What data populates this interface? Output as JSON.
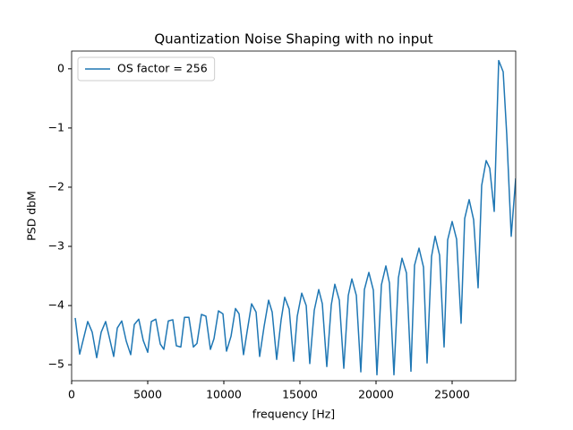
{
  "chart_data": {
    "type": "line",
    "title": "Quantization Noise Shaping with no input",
    "x_label": "frequency [Hz]",
    "y_label": "PSD dbM",
    "legend": "upper left",
    "grid": false,
    "xlim": [
      0,
      29176
    ],
    "ylim": [
      -5.27,
      0.3
    ],
    "xticks": [
      0,
      5000,
      10000,
      15000,
      20000,
      25000
    ],
    "yticks": [
      {
        "value": -5,
        "label": "−5"
      },
      {
        "value": -4,
        "label": "−4"
      },
      {
        "value": -3,
        "label": "−3"
      },
      {
        "value": -2,
        "label": "−2"
      },
      {
        "value": -1,
        "label": "−1"
      },
      0
    ],
    "x": [
      235,
      529,
      1059,
      1353,
      1647,
      1941,
      2235,
      2471,
      2765,
      3000,
      3294,
      3588,
      3882,
      4118,
      4412,
      4706,
      5000,
      5235,
      5529,
      5824,
      6059,
      6353,
      6647,
      6882,
      7176,
      7412,
      7706,
      8000,
      8235,
      8529,
      8824,
      9118,
      9353,
      9647,
      9941,
      10176,
      10471,
      10765,
      11000,
      11294,
      11529,
      11824,
      12118,
      12353,
      12647,
      12941,
      13176,
      13471,
      13765,
      14000,
      14294,
      14588,
      14824,
      15118,
      15412,
      15647,
      15941,
      16235,
      16471,
      16765,
      17059,
      17294,
      17588,
      17882,
      18176,
      18412,
      18706,
      19000,
      19235,
      19529,
      19824,
      20059,
      20353,
      20647,
      20882,
      21176,
      21471,
      21706,
      22000,
      22294,
      22529,
      22824,
      23118,
      23353,
      23647,
      23882,
      24176,
      24471,
      24706,
      25000,
      25294,
      25588,
      25824,
      26118,
      26412,
      26706,
      26941,
      27235,
      27471,
      27765,
      28059,
      28353,
      28588,
      28882,
      29176
    ],
    "series": [
      {
        "name": "OS factor = 256",
        "color": "#1f77b4",
        "values": [
          -4.21,
          -4.82,
          -4.27,
          -4.45,
          -4.88,
          -4.45,
          -4.27,
          -4.53,
          -4.86,
          -4.38,
          -4.26,
          -4.6,
          -4.83,
          -4.32,
          -4.23,
          -4.59,
          -4.79,
          -4.27,
          -4.23,
          -4.65,
          -4.74,
          -4.26,
          -4.24,
          -4.68,
          -4.7,
          -4.2,
          -4.2,
          -4.7,
          -4.64,
          -4.15,
          -4.18,
          -4.74,
          -4.56,
          -4.09,
          -4.14,
          -4.77,
          -4.52,
          -4.05,
          -4.14,
          -4.83,
          -4.44,
          -3.97,
          -4.11,
          -4.86,
          -4.35,
          -3.91,
          -4.11,
          -4.91,
          -4.24,
          -3.86,
          -4.06,
          -4.94,
          -4.18,
          -3.79,
          -4,
          -4.98,
          -4.08,
          -3.73,
          -3.97,
          -5.03,
          -3.99,
          -3.64,
          -3.91,
          -5.06,
          -3.83,
          -3.55,
          -3.83,
          -5.12,
          -3.73,
          -3.44,
          -3.74,
          -5.17,
          -3.65,
          -3.33,
          -3.62,
          -5.17,
          -3.53,
          -3.2,
          -3.45,
          -5.11,
          -3.32,
          -3.03,
          -3.35,
          -4.97,
          -3.17,
          -2.83,
          -3.15,
          -4.7,
          -2.89,
          -2.58,
          -2.88,
          -4.3,
          -2.53,
          -2.21,
          -2.55,
          -3.7,
          -1.97,
          -1.55,
          -1.68,
          -2.41,
          0.14,
          -0.05,
          -1.11,
          -2.83,
          -1.85
        ]
      }
    ]
  }
}
